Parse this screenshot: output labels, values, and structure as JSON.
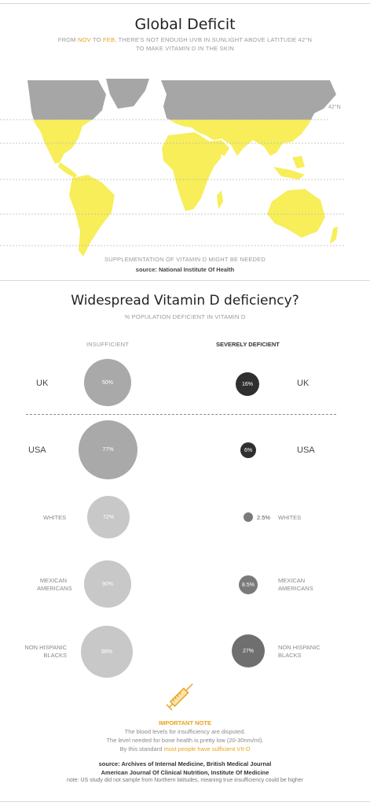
{
  "top": {
    "title": "Global Deficit",
    "subtitle_pre": "FROM ",
    "subtitle_nov": "NOV",
    "subtitle_to": " TO ",
    "subtitle_feb": "FEB",
    "subtitle_rest": ", THERE'S NOT ENOUGH UVB IN SUNLIGHT ABOVE LATITUDE 42°N",
    "subtitle_line2": "TO MAKE VITAMIN D IN THE SKIN",
    "latitude_label": "42°N",
    "map_caption": "SUPPLEMENTATION OF VITAMIN D MIGHT BE NEEDED",
    "source": "source: National Institute Of Health",
    "colors": {
      "north": "#a6a6a6",
      "south": "#f7ee5a",
      "accent": "#e8a217"
    }
  },
  "bottom": {
    "title": "Widespread Vitamin D deficiency?",
    "subtitle": "% POPULATION DEFICIENT IN VITAMIN D",
    "col_insufficient": "INSUFFICIENT",
    "col_severe": "SEVERELY DEFICIENT",
    "rows": [
      {
        "label_left": "UK",
        "label_right": "UK",
        "insufficient": "50%",
        "severe": "16%",
        "insufficient_value": 50,
        "severe_value": 16
      },
      {
        "label_left": "USA",
        "label_right": "USA",
        "insufficient": "77%",
        "severe": "6%",
        "insufficient_value": 77,
        "severe_value": 6
      },
      {
        "label_left": "WHITES",
        "label_right": "WHITES",
        "insufficient": "72%",
        "severe": "2.5%",
        "insufficient_value": 72,
        "severe_value": 2.5
      },
      {
        "label_left_1": "MEXICAN",
        "label_left_2": "AMERICANS",
        "label_right_1": "MEXICAN",
        "label_right_2": "AMERICANS",
        "insufficient": "90%",
        "severe": "8.5%",
        "insufficient_value": 90,
        "severe_value": 8.5
      },
      {
        "label_left_1": "NON HISPANIC",
        "label_left_2": "BLACKS",
        "label_right_1": "NON HISPANIC",
        "label_right_2": "BLACKS",
        "insufficient": "98%",
        "severe": "27%",
        "insufficient_value": 98,
        "severe_value": 27
      }
    ],
    "important_note_title": "IMPORTANT NOTE",
    "important_line1": "The blood levels for insufficiency are disputed.",
    "important_line2": "The level needed for bone health is pretty low (20-30nm/ml).",
    "important_line3_pre": "By this standard ",
    "important_line3_hl": "most people have sufficient VIt-D",
    "source_line1": "source: Archives of Internal Medicine, British Medical Journal",
    "source_line2": "American Journal Of Clinical Nutrition, Institute Of Medicine",
    "footnote": "note: US study did not sample from Northern latitudes, meaning true insufficiency could be higher"
  }
}
